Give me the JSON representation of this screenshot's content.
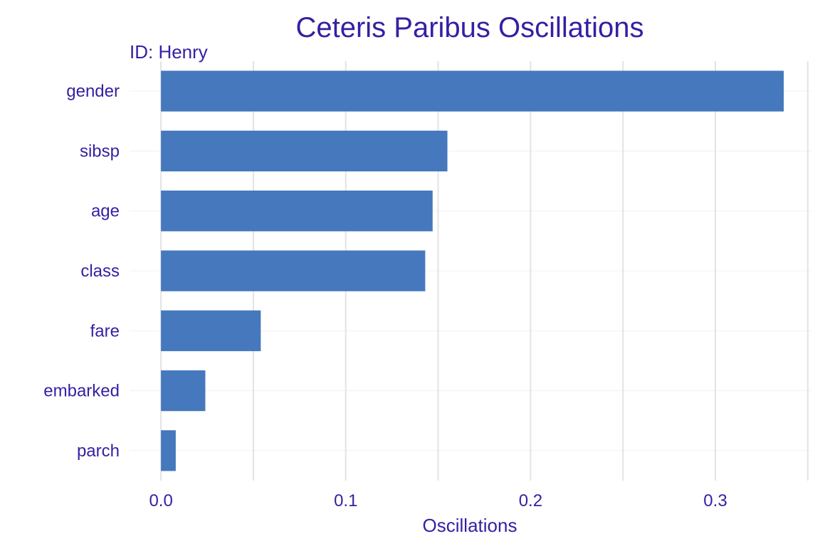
{
  "chart_data": {
    "type": "bar",
    "orientation": "horizontal",
    "title": "Ceteris Paribus Oscillations",
    "subtitle": "ID: Henry",
    "xlabel": "Oscillations",
    "ylabel": "",
    "categories": [
      "gender",
      "sibsp",
      "age",
      "class",
      "fare",
      "embarked",
      "parch"
    ],
    "values": [
      0.337,
      0.155,
      0.147,
      0.143,
      0.054,
      0.024,
      0.008
    ],
    "xlim": [
      -0.017,
      0.352
    ],
    "x_ticks": [
      0.0,
      0.1,
      0.2,
      0.3
    ],
    "x_tick_labels": [
      "0.0",
      "0.1",
      "0.2",
      "0.3"
    ],
    "grid": true,
    "legend": "none",
    "bar_color": "#4578bd",
    "text_color": "#371ea3"
  }
}
